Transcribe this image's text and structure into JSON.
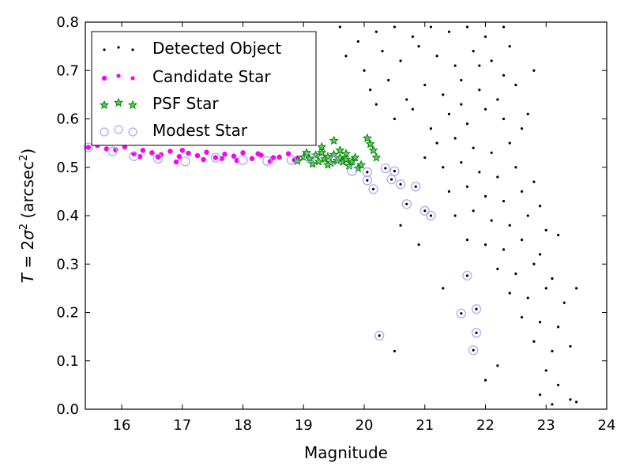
{
  "chart_data": {
    "type": "scatter",
    "title": "",
    "xlabel": "Magnitude",
    "ylabel_parts": {
      "pre": "T",
      "eq": " = 2",
      "sigma": "σ",
      "sup": "2",
      "unit_open": " (arcsec",
      "unit_sup": "2",
      "unit_close": ")"
    },
    "xlim": [
      15.4,
      24
    ],
    "ylim": [
      0.0,
      0.8
    ],
    "x_ticks": [
      16,
      17,
      18,
      19,
      20,
      21,
      22,
      23,
      24
    ],
    "y_ticks": [
      0.0,
      0.1,
      0.2,
      0.3,
      0.4,
      0.5,
      0.6,
      0.7,
      0.8
    ],
    "x_tick_labels": [
      "16",
      "17",
      "18",
      "19",
      "20",
      "21",
      "22",
      "23",
      "24"
    ],
    "y_tick_labels": [
      "0.0",
      "0.1",
      "0.2",
      "0.3",
      "0.4",
      "0.5",
      "0.6",
      "0.7",
      "0.8"
    ],
    "grid": false,
    "legend_position": "top-left",
    "colors": {
      "detected": "#000000",
      "candidate": "#ff00ff",
      "psf": "#008000",
      "modest": "#aaaaff"
    },
    "series": [
      {
        "name": "Detected Object",
        "marker": "dot",
        "points": [
          [
            19.6,
            0.79
          ],
          [
            19.9,
            0.76
          ],
          [
            20.2,
            0.78
          ],
          [
            20.5,
            0.79
          ],
          [
            20.8,
            0.77
          ],
          [
            21.1,
            0.79
          ],
          [
            21.4,
            0.78
          ],
          [
            21.7,
            0.79
          ],
          [
            22.0,
            0.77
          ],
          [
            22.3,
            0.79
          ],
          [
            19.7,
            0.73
          ],
          [
            20.0,
            0.7
          ],
          [
            20.3,
            0.74
          ],
          [
            20.6,
            0.72
          ],
          [
            20.9,
            0.75
          ],
          [
            21.2,
            0.73
          ],
          [
            21.5,
            0.71
          ],
          [
            21.8,
            0.74
          ],
          [
            22.1,
            0.72
          ],
          [
            22.4,
            0.75
          ],
          [
            20.1,
            0.66
          ],
          [
            20.4,
            0.68
          ],
          [
            20.7,
            0.64
          ],
          [
            21.0,
            0.67
          ],
          [
            21.3,
            0.65
          ],
          [
            21.6,
            0.68
          ],
          [
            21.9,
            0.66
          ],
          [
            22.2,
            0.64
          ],
          [
            22.5,
            0.67
          ],
          [
            22.8,
            0.7
          ],
          [
            20.5,
            0.6
          ],
          [
            20.8,
            0.62
          ],
          [
            21.1,
            0.58
          ],
          [
            21.4,
            0.61
          ],
          [
            21.7,
            0.59
          ],
          [
            22.0,
            0.62
          ],
          [
            22.3,
            0.6
          ],
          [
            22.6,
            0.58
          ],
          [
            21.2,
            0.55
          ],
          [
            21.5,
            0.56
          ],
          [
            21.8,
            0.54
          ],
          [
            22.1,
            0.53
          ],
          [
            22.4,
            0.55
          ],
          [
            21.0,
            0.52
          ],
          [
            21.3,
            0.5
          ],
          [
            21.6,
            0.51
          ],
          [
            21.9,
            0.49
          ],
          [
            22.2,
            0.48
          ],
          [
            22.5,
            0.5
          ],
          [
            22.8,
            0.47
          ],
          [
            21.4,
            0.45
          ],
          [
            21.7,
            0.46
          ],
          [
            22.0,
            0.44
          ],
          [
            22.3,
            0.43
          ],
          [
            22.6,
            0.45
          ],
          [
            22.9,
            0.42
          ],
          [
            21.5,
            0.4
          ],
          [
            21.8,
            0.41
          ],
          [
            22.1,
            0.39
          ],
          [
            22.4,
            0.38
          ],
          [
            22.7,
            0.4
          ],
          [
            23.0,
            0.37
          ],
          [
            21.7,
            0.35
          ],
          [
            22.0,
            0.34
          ],
          [
            22.3,
            0.33
          ],
          [
            22.6,
            0.35
          ],
          [
            22.9,
            0.32
          ],
          [
            23.2,
            0.36
          ],
          [
            22.2,
            0.29
          ],
          [
            22.5,
            0.28
          ],
          [
            22.8,
            0.3
          ],
          [
            23.1,
            0.27
          ],
          [
            22.4,
            0.24
          ],
          [
            22.7,
            0.23
          ],
          [
            23.0,
            0.25
          ],
          [
            23.3,
            0.22
          ],
          [
            22.6,
            0.19
          ],
          [
            22.9,
            0.18
          ],
          [
            23.2,
            0.17
          ],
          [
            23.5,
            0.25
          ],
          [
            22.8,
            0.14
          ],
          [
            23.1,
            0.12
          ],
          [
            23.4,
            0.13
          ],
          [
            23.0,
            0.08
          ],
          [
            23.2,
            0.05
          ],
          [
            22.9,
            0.03
          ],
          [
            23.4,
            0.02
          ],
          [
            23.5,
            0.015
          ],
          [
            23.1,
            0.01
          ],
          [
            22.0,
            0.06
          ],
          [
            20.6,
            0.38
          ],
          [
            20.9,
            0.34
          ],
          [
            21.3,
            0.25
          ],
          [
            20.5,
            0.12
          ],
          [
            22.2,
            0.09
          ],
          [
            21.9,
            0.71
          ],
          [
            22.3,
            0.69
          ],
          [
            21.6,
            0.63
          ],
          [
            22.7,
            0.61
          ],
          [
            20.2,
            0.63
          ]
        ]
      },
      {
        "name": "Candidate Star",
        "marker": "circle",
        "points": [
          [
            15.45,
            0.541
          ],
          [
            15.6,
            0.545
          ],
          [
            15.75,
            0.538
          ],
          [
            15.9,
            0.536
          ],
          [
            16.05,
            0.542
          ],
          [
            16.2,
            0.528
          ],
          [
            16.35,
            0.535
          ],
          [
            16.5,
            0.53
          ],
          [
            16.65,
            0.526
          ],
          [
            16.8,
            0.533
          ],
          [
            16.95,
            0.522
          ],
          [
            17.1,
            0.529
          ],
          [
            17.25,
            0.524
          ],
          [
            17.4,
            0.531
          ],
          [
            17.55,
            0.52
          ],
          [
            17.7,
            0.527
          ],
          [
            17.85,
            0.523
          ],
          [
            18.0,
            0.53
          ],
          [
            18.15,
            0.518
          ],
          [
            18.3,
            0.525
          ],
          [
            18.45,
            0.512
          ],
          [
            18.6,
            0.521
          ],
          [
            18.75,
            0.528
          ],
          [
            18.9,
            0.519
          ],
          [
            15.95,
            0.55
          ],
          [
            16.3,
            0.522
          ],
          [
            16.9,
            0.511
          ],
          [
            17.35,
            0.516
          ],
          [
            17.9,
            0.514
          ],
          [
            18.25,
            0.528
          ],
          [
            18.5,
            0.52
          ],
          [
            18.85,
            0.515
          ],
          [
            17.0,
            0.535
          ],
          [
            16.6,
            0.521
          ],
          [
            17.65,
            0.518
          ]
        ]
      },
      {
        "name": "PSF Star",
        "marker": "star",
        "points": [
          [
            18.9,
            0.513
          ],
          [
            19.0,
            0.521
          ],
          [
            19.1,
            0.518
          ],
          [
            19.2,
            0.525
          ],
          [
            19.25,
            0.512
          ],
          [
            19.3,
            0.53
          ],
          [
            19.35,
            0.517
          ],
          [
            19.4,
            0.522
          ],
          [
            19.45,
            0.509
          ],
          [
            19.5,
            0.526
          ],
          [
            19.55,
            0.514
          ],
          [
            19.6,
            0.52
          ],
          [
            19.65,
            0.511
          ],
          [
            19.7,
            0.516
          ],
          [
            19.75,
            0.503
          ],
          [
            19.8,
            0.512
          ],
          [
            19.85,
            0.52
          ],
          [
            19.9,
            0.498
          ],
          [
            19.95,
            0.505
          ],
          [
            20.05,
            0.56
          ],
          [
            20.1,
            0.548
          ],
          [
            20.15,
            0.535
          ],
          [
            20.2,
            0.52
          ],
          [
            19.5,
            0.555
          ],
          [
            19.3,
            0.542
          ],
          [
            19.15,
            0.507
          ],
          [
            19.05,
            0.53
          ],
          [
            19.6,
            0.535
          ],
          [
            19.4,
            0.505
          ],
          [
            19.7,
            0.528
          ]
        ]
      },
      {
        "name": "Modest Star",
        "marker": "ring",
        "points": [
          [
            15.45,
            0.541
          ],
          [
            15.85,
            0.533
          ],
          [
            16.2,
            0.523
          ],
          [
            16.6,
            0.518
          ],
          [
            17.05,
            0.512
          ],
          [
            17.55,
            0.52
          ],
          [
            18.0,
            0.515
          ],
          [
            18.4,
            0.513
          ],
          [
            18.8,
            0.515
          ],
          [
            19.1,
            0.52
          ],
          [
            19.5,
            0.514
          ],
          [
            19.8,
            0.492
          ],
          [
            20.05,
            0.49
          ],
          [
            20.15,
            0.455
          ],
          [
            20.05,
            0.473
          ],
          [
            20.35,
            0.498
          ],
          [
            20.5,
            0.492
          ],
          [
            20.45,
            0.475
          ],
          [
            20.6,
            0.465
          ],
          [
            20.85,
            0.46
          ],
          [
            20.7,
            0.424
          ],
          [
            21.0,
            0.41
          ],
          [
            21.1,
            0.4
          ],
          [
            20.25,
            0.152
          ],
          [
            21.6,
            0.198
          ],
          [
            21.7,
            0.276
          ],
          [
            21.8,
            0.122
          ],
          [
            21.85,
            0.207
          ],
          [
            21.85,
            0.158
          ]
        ]
      }
    ]
  }
}
